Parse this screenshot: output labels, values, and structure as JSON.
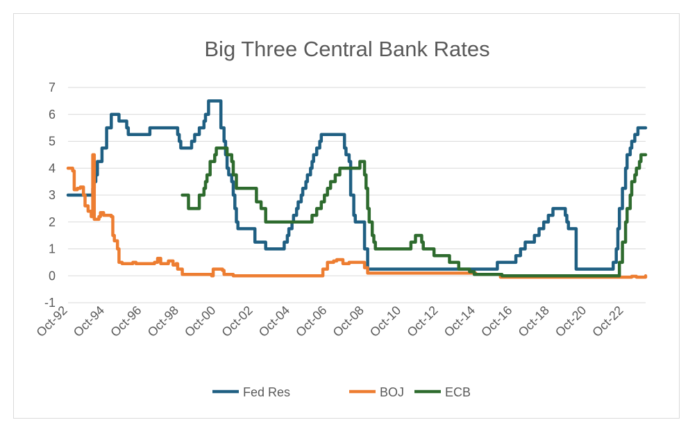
{
  "chart_data": {
    "type": "line",
    "title": "Big Three Central Bank Rates",
    "xlabel": "",
    "ylabel": "",
    "ylim": [
      -1,
      7
    ],
    "yticks": [
      "7",
      "6",
      "5",
      "4",
      "3",
      "2",
      "1",
      "0",
      "-1"
    ],
    "xlim": [
      "1992-10",
      "2023-12"
    ],
    "xticks": [
      "Oct-92",
      "Oct-94",
      "Oct-96",
      "Oct-98",
      "Oct-00",
      "Oct-02",
      "Oct-04",
      "Oct-06",
      "Oct-08",
      "Oct-10",
      "Oct-12",
      "Oct-14",
      "Oct-16",
      "Oct-18",
      "Oct-20",
      "Oct-22"
    ],
    "grid": true,
    "legend_position": "bottom",
    "series": [
      {
        "name": "Fed Res",
        "color": "#1f5f82",
        "points": [
          [
            "1992-10",
            3.0
          ],
          [
            "1994-01",
            3.0
          ],
          [
            "1994-02",
            3.25
          ],
          [
            "1994-03",
            3.5
          ],
          [
            "1994-04",
            3.75
          ],
          [
            "1994-05",
            4.25
          ],
          [
            "1994-08",
            4.75
          ],
          [
            "1994-11",
            5.5
          ],
          [
            "1995-02",
            6.0
          ],
          [
            "1995-07",
            5.75
          ],
          [
            "1995-12",
            5.5
          ],
          [
            "1996-01",
            5.25
          ],
          [
            "1997-03",
            5.5
          ],
          [
            "1998-09",
            5.25
          ],
          [
            "1998-10",
            5.0
          ],
          [
            "1998-11",
            4.75
          ],
          [
            "1999-06",
            5.0
          ],
          [
            "1999-08",
            5.25
          ],
          [
            "1999-11",
            5.5
          ],
          [
            "2000-02",
            5.75
          ],
          [
            "2000-03",
            6.0
          ],
          [
            "2000-05",
            6.5
          ],
          [
            "2001-01",
            5.5
          ],
          [
            "2001-03",
            5.0
          ],
          [
            "2001-04",
            4.5
          ],
          [
            "2001-05",
            4.0
          ],
          [
            "2001-06",
            3.75
          ],
          [
            "2001-08",
            3.5
          ],
          [
            "2001-09",
            3.0
          ],
          [
            "2001-10",
            2.5
          ],
          [
            "2001-11",
            2.0
          ],
          [
            "2001-12",
            1.75
          ],
          [
            "2002-11",
            1.25
          ],
          [
            "2003-06",
            1.0
          ],
          [
            "2004-06",
            1.25
          ],
          [
            "2004-08",
            1.5
          ],
          [
            "2004-09",
            1.75
          ],
          [
            "2004-11",
            2.0
          ],
          [
            "2004-12",
            2.25
          ],
          [
            "2005-02",
            2.5
          ],
          [
            "2005-03",
            2.75
          ],
          [
            "2005-05",
            3.0
          ],
          [
            "2005-06",
            3.25
          ],
          [
            "2005-08",
            3.5
          ],
          [
            "2005-09",
            3.75
          ],
          [
            "2005-11",
            4.0
          ],
          [
            "2005-12",
            4.25
          ],
          [
            "2006-01",
            4.5
          ],
          [
            "2006-03",
            4.75
          ],
          [
            "2006-05",
            5.0
          ],
          [
            "2006-06",
            5.25
          ],
          [
            "2007-09",
            4.75
          ],
          [
            "2007-10",
            4.5
          ],
          [
            "2007-12",
            4.25
          ],
          [
            "2008-01",
            3.0
          ],
          [
            "2008-03",
            2.25
          ],
          [
            "2008-04",
            2.0
          ],
          [
            "2008-10",
            1.0
          ],
          [
            "2008-12",
            0.25
          ],
          [
            "2015-12",
            0.5
          ],
          [
            "2016-12",
            0.75
          ],
          [
            "2017-03",
            1.0
          ],
          [
            "2017-06",
            1.25
          ],
          [
            "2017-12",
            1.5
          ],
          [
            "2018-03",
            1.75
          ],
          [
            "2018-06",
            2.0
          ],
          [
            "2018-09",
            2.25
          ],
          [
            "2018-12",
            2.5
          ],
          [
            "2019-08",
            2.25
          ],
          [
            "2019-09",
            2.0
          ],
          [
            "2019-10",
            1.75
          ],
          [
            "2020-03",
            0.25
          ],
          [
            "2022-03",
            0.5
          ],
          [
            "2022-05",
            1.0
          ],
          [
            "2022-06",
            1.75
          ],
          [
            "2022-07",
            2.5
          ],
          [
            "2022-09",
            3.25
          ],
          [
            "2022-11",
            4.0
          ],
          [
            "2022-12",
            4.5
          ],
          [
            "2023-02",
            4.75
          ],
          [
            "2023-03",
            5.0
          ],
          [
            "2023-05",
            5.25
          ],
          [
            "2023-07",
            5.5
          ],
          [
            "2023-12",
            5.5
          ]
        ]
      },
      {
        "name": "BOJ",
        "color": "#ed7d31",
        "points": [
          [
            "1992-10",
            4.0
          ],
          [
            "1993-01",
            3.9
          ],
          [
            "1993-02",
            3.2
          ],
          [
            "1993-04",
            3.25
          ],
          [
            "1993-06",
            3.3
          ],
          [
            "1993-08",
            3.0
          ],
          [
            "1993-09",
            2.6
          ],
          [
            "1993-11",
            2.4
          ],
          [
            "1994-01",
            2.2
          ],
          [
            "1994-02",
            4.5
          ],
          [
            "1994-03",
            2.1
          ],
          [
            "1994-06",
            2.2
          ],
          [
            "1994-07",
            2.35
          ],
          [
            "1994-09",
            2.25
          ],
          [
            "1995-02",
            2.2
          ],
          [
            "1995-03",
            1.5
          ],
          [
            "1995-04",
            1.3
          ],
          [
            "1995-06",
            1.0
          ],
          [
            "1995-07",
            0.5
          ],
          [
            "1995-09",
            0.45
          ],
          [
            "1996-04",
            0.5
          ],
          [
            "1996-06",
            0.45
          ],
          [
            "1997-06",
            0.5
          ],
          [
            "1997-08",
            0.65
          ],
          [
            "1997-10",
            0.45
          ],
          [
            "1998-03",
            0.55
          ],
          [
            "1998-06",
            0.4
          ],
          [
            "1998-08",
            0.45
          ],
          [
            "1998-09",
            0.25
          ],
          [
            "1998-12",
            0.05
          ],
          [
            "2000-07",
            0.0
          ],
          [
            "2000-08",
            0.25
          ],
          [
            "2001-02",
            0.2
          ],
          [
            "2001-03",
            0.05
          ],
          [
            "2001-09",
            0.0
          ],
          [
            "2006-03",
            0.0
          ],
          [
            "2006-07",
            0.25
          ],
          [
            "2006-10",
            0.5
          ],
          [
            "2007-02",
            0.55
          ],
          [
            "2007-04",
            0.6
          ],
          [
            "2007-08",
            0.45
          ],
          [
            "2007-12",
            0.5
          ],
          [
            "2008-06",
            0.5
          ],
          [
            "2008-10",
            0.3
          ],
          [
            "2008-12",
            0.1
          ],
          [
            "2012-10",
            0.1
          ],
          [
            "2014-10",
            0.05
          ],
          [
            "2016-02",
            -0.05
          ],
          [
            "2016-09",
            -0.05
          ],
          [
            "2019-01",
            -0.05
          ],
          [
            "2022-10",
            -0.05
          ],
          [
            "2023-03",
            -0.02
          ],
          [
            "2023-06",
            -0.05
          ],
          [
            "2023-12",
            0.0
          ]
        ]
      },
      {
        "name": "ECB",
        "color": "#2e6b2e",
        "points": [
          [
            "1998-12",
            3.0
          ],
          [
            "1999-04",
            2.5
          ],
          [
            "1999-11",
            3.0
          ],
          [
            "2000-02",
            3.25
          ],
          [
            "2000-03",
            3.5
          ],
          [
            "2000-04",
            3.75
          ],
          [
            "2000-06",
            4.25
          ],
          [
            "2000-09",
            4.5
          ],
          [
            "2000-10",
            4.75
          ],
          [
            "2001-05",
            4.5
          ],
          [
            "2001-08",
            4.25
          ],
          [
            "2001-09",
            3.75
          ],
          [
            "2001-11",
            3.25
          ],
          [
            "2002-12",
            2.75
          ],
          [
            "2003-03",
            2.5
          ],
          [
            "2003-06",
            2.0
          ],
          [
            "2005-12",
            2.25
          ],
          [
            "2006-03",
            2.5
          ],
          [
            "2006-06",
            2.75
          ],
          [
            "2006-08",
            3.0
          ],
          [
            "2006-10",
            3.25
          ],
          [
            "2006-12",
            3.5
          ],
          [
            "2007-03",
            3.75
          ],
          [
            "2007-06",
            4.0
          ],
          [
            "2008-07",
            4.25
          ],
          [
            "2008-10",
            3.75
          ],
          [
            "2008-11",
            3.25
          ],
          [
            "2008-12",
            2.5
          ],
          [
            "2009-01",
            2.0
          ],
          [
            "2009-03",
            1.5
          ],
          [
            "2009-04",
            1.25
          ],
          [
            "2009-05",
            1.0
          ],
          [
            "2011-04",
            1.25
          ],
          [
            "2011-07",
            1.5
          ],
          [
            "2011-11",
            1.25
          ],
          [
            "2011-12",
            1.0
          ],
          [
            "2012-07",
            0.75
          ],
          [
            "2013-05",
            0.5
          ],
          [
            "2013-11",
            0.25
          ],
          [
            "2014-06",
            0.15
          ],
          [
            "2014-09",
            0.05
          ],
          [
            "2016-03",
            0.0
          ],
          [
            "2022-07",
            0.5
          ],
          [
            "2022-09",
            1.25
          ],
          [
            "2022-11",
            2.0
          ],
          [
            "2022-12",
            2.5
          ],
          [
            "2023-02",
            3.0
          ],
          [
            "2023-03",
            3.5
          ],
          [
            "2023-05",
            3.75
          ],
          [
            "2023-06",
            4.0
          ],
          [
            "2023-08",
            4.25
          ],
          [
            "2023-09",
            4.5
          ],
          [
            "2023-12",
            4.5
          ]
        ]
      }
    ]
  }
}
